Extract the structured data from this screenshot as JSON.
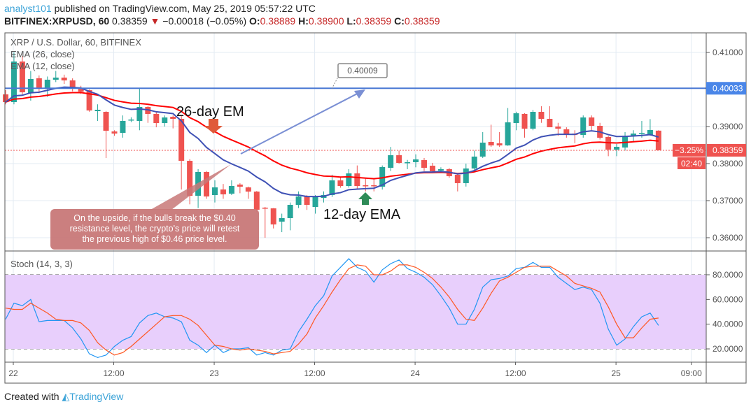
{
  "header": {
    "user": "analyst101",
    "published": " published on TradingView.com, May 25, 2019 05:57:22 UTC",
    "symbol": "BITFINEX:XRPUSD, 60",
    "last": "0.38359",
    "change": "−0.00018 (−0.05%)",
    "o_label": "O:",
    "o": "0.38889",
    "h_label": "H:",
    "h": "0.38900",
    "l_label": "L:",
    "l": "0.38359",
    "c_label": "C:",
    "c": "0.38359"
  },
  "chart_data": [
    {
      "type": "candlestick",
      "title": "XRP / U.S. Dollar, 60, BITFINEX",
      "legend": [
        "EMA (26, close)",
        "EMA (12, close)"
      ],
      "ylim": [
        0.3555,
        0.4155
      ],
      "y_ticks": [
        "0.41000",
        "0.39000",
        "0.38000",
        "0.37000",
        "0.36000"
      ],
      "y_tick_values": [
        0.41,
        0.39,
        0.38,
        0.37,
        0.36
      ],
      "x_ticks": [
        "22",
        "12:00",
        "23",
        "12:00",
        "24",
        "12:00",
        "25",
        "09:00"
      ],
      "x_tick_hours": [
        1,
        13,
        25,
        37,
        49,
        61,
        73,
        82
      ],
      "grid": true,
      "colors": {
        "up": "#26a69a",
        "down": "#ef5350",
        "ema26": "#ff0000",
        "ema12": "#3f51b5",
        "hline": "#4a78d4"
      },
      "candles_ohlc": [
        [
          0.39868,
          0.3998,
          0.396,
          0.3966
        ],
        [
          0.3966,
          0.41,
          0.396,
          0.40755
        ],
        [
          0.40755,
          0.409,
          0.3985,
          0.39925
        ],
        [
          0.39906,
          0.405,
          0.397,
          0.40283
        ],
        [
          0.40302,
          0.4038,
          0.399,
          0.40019
        ],
        [
          0.40038,
          0.4035,
          0.398,
          0.40264
        ],
        [
          0.40264,
          0.405,
          0.402,
          0.40321
        ],
        [
          0.40321,
          0.404,
          0.4015,
          0.40245
        ],
        [
          0.40245,
          0.403,
          0.3995,
          0.40019
        ],
        [
          0.40019,
          0.401,
          0.3988,
          0.39943
        ],
        [
          0.39981,
          0.4,
          0.394,
          0.39434
        ],
        [
          0.39415,
          0.396,
          0.3915,
          0.39453
        ],
        [
          0.39396,
          0.3942,
          0.3815,
          0.38887
        ],
        [
          0.38868,
          0.389,
          0.3875,
          0.38811
        ],
        [
          0.3883,
          0.393,
          0.387,
          0.39151
        ],
        [
          0.3917,
          0.3925,
          0.3912,
          0.39189
        ],
        [
          0.39151,
          0.4002,
          0.389,
          0.39528
        ],
        [
          0.39528,
          0.3956,
          0.391,
          0.3934
        ],
        [
          0.3934,
          0.394,
          0.3898,
          0.39094
        ],
        [
          0.39094,
          0.393,
          0.39,
          0.39245
        ],
        [
          0.39264,
          0.393,
          0.3895,
          0.39208
        ],
        [
          0.39208,
          0.393,
          0.373,
          0.38075
        ],
        [
          0.38075,
          0.3812,
          0.369,
          0.37132
        ],
        [
          0.37132,
          0.3785,
          0.368,
          0.37774
        ],
        [
          0.37774,
          0.378,
          0.3705,
          0.37113
        ],
        [
          0.37151,
          0.3755,
          0.3695,
          0.37358
        ],
        [
          0.37302,
          0.3745,
          0.3705,
          0.3717
        ],
        [
          0.37189,
          0.3755,
          0.3715,
          0.37396
        ],
        [
          0.37434,
          0.3747,
          0.372,
          0.37377
        ],
        [
          0.37358,
          0.3738,
          0.3705,
          0.37245
        ],
        [
          0.37245,
          0.3726,
          0.367,
          0.36755
        ],
        [
          0.36811,
          0.3683,
          0.36,
          0.36792
        ],
        [
          0.36792,
          0.368,
          0.3625,
          0.36358
        ],
        [
          0.36434,
          0.3665,
          0.3615,
          0.36528
        ],
        [
          0.36528,
          0.3695,
          0.362,
          0.36887
        ],
        [
          0.36887,
          0.3725,
          0.368,
          0.37113
        ],
        [
          0.37113,
          0.3715,
          0.3675,
          0.36887
        ],
        [
          0.3683,
          0.3715,
          0.3665,
          0.37113
        ],
        [
          0.37075,
          0.3725,
          0.3695,
          0.37151
        ],
        [
          0.37151,
          0.377,
          0.371,
          0.37547
        ],
        [
          0.37547,
          0.3765,
          0.3735,
          0.37396
        ],
        [
          0.37396,
          0.3785,
          0.3735,
          0.37736
        ],
        [
          0.37736,
          0.3795,
          0.373,
          0.37396
        ],
        [
          0.37415,
          0.376,
          0.3725,
          0.37396
        ],
        [
          0.37415,
          0.376,
          0.3725,
          0.37396
        ],
        [
          0.37377,
          0.3795,
          0.373,
          0.37906
        ],
        [
          0.37887,
          0.3845,
          0.378,
          0.38226
        ],
        [
          0.38226,
          0.3835,
          0.38,
          0.38019
        ],
        [
          0.38019,
          0.381,
          0.3785,
          0.38038
        ],
        [
          0.38038,
          0.3825,
          0.379,
          0.38113
        ],
        [
          0.38094,
          0.3815,
          0.378,
          0.37887
        ],
        [
          0.37943,
          0.3802,
          0.3775,
          0.37792
        ],
        [
          0.37811,
          0.379,
          0.3778,
          0.37849
        ],
        [
          0.37849,
          0.3788,
          0.3762,
          0.3766
        ],
        [
          0.37698,
          0.3772,
          0.3725,
          0.37472
        ],
        [
          0.37472,
          0.38,
          0.3738,
          0.37868
        ],
        [
          0.37868,
          0.3835,
          0.378,
          0.38189
        ],
        [
          0.38189,
          0.3885,
          0.3815,
          0.38566
        ],
        [
          0.38585,
          0.3905,
          0.3845,
          0.38491
        ],
        [
          0.38547,
          0.3885,
          0.3845,
          0.38491
        ],
        [
          0.38491,
          0.395,
          0.3848,
          0.39113
        ],
        [
          0.39094,
          0.394,
          0.389,
          0.39358
        ],
        [
          0.3934,
          0.3936,
          0.387,
          0.38943
        ],
        [
          0.38943,
          0.3945,
          0.389,
          0.39396
        ],
        [
          0.39396,
          0.3955,
          0.391,
          0.39208
        ],
        [
          0.39208,
          0.3955,
          0.39,
          0.38981
        ],
        [
          0.39,
          0.391,
          0.3875,
          0.38943
        ],
        [
          0.38925,
          0.3898,
          0.387,
          0.38792
        ],
        [
          0.38811,
          0.389,
          0.3855,
          0.38774
        ],
        [
          0.38774,
          0.393,
          0.387,
          0.39245
        ],
        [
          0.39245,
          0.393,
          0.389,
          0.39019
        ],
        [
          0.39019,
          0.391,
          0.3865,
          0.38698
        ],
        [
          0.38717,
          0.3875,
          0.382,
          0.38377
        ],
        [
          0.38377,
          0.3853,
          0.382,
          0.38453
        ],
        [
          0.38434,
          0.3885,
          0.3835,
          0.38755
        ],
        [
          0.38755,
          0.389,
          0.386,
          0.38811
        ],
        [
          0.38811,
          0.3915,
          0.387,
          0.3883
        ],
        [
          0.38774,
          0.392,
          0.3875,
          0.38906
        ],
        [
          0.38889,
          0.389,
          0.38359,
          0.38359
        ]
      ],
      "horizontal_line": {
        "value": 0.40033,
        "label": "0.40033"
      },
      "last_price": {
        "value": 0.38359,
        "label": "0.38359",
        "pct": "−3.25%",
        "countdown": "02:40"
      },
      "trend_line": {
        "label": "0.40009"
      },
      "annotations": {
        "ema26_text": "26-day EM",
        "ema12_text": "12-day EMA",
        "callout": [
          "On the upside, if the bulls  break the $0.40",
          "resistance level, the crypto's price will retest",
          "the previous high of $0.46 price level."
        ]
      }
    },
    {
      "type": "line",
      "title": "Stoch (14, 3, 3)",
      "ylim": [
        10,
        95
      ],
      "y_ticks": [
        "80.0000",
        "60.0000",
        "40.0000",
        "20.0000"
      ],
      "y_tick_values": [
        80,
        60,
        40,
        20
      ],
      "bands": [
        20,
        80
      ],
      "band_fill": "#e8cffc",
      "series": [
        {
          "color": "#2196f3",
          "values": [
            44,
            57,
            55,
            60,
            42,
            43,
            43,
            43,
            37,
            28,
            16,
            13,
            15,
            22,
            27,
            30,
            41,
            47,
            49,
            46,
            45,
            42,
            27,
            23,
            17,
            23,
            17,
            20,
            20,
            21,
            15,
            17,
            15,
            19,
            20,
            34,
            44,
            55,
            63,
            79,
            86,
            93,
            86,
            83,
            74,
            84,
            89,
            92,
            85,
            82,
            78,
            72,
            63,
            53,
            40,
            40,
            52,
            70,
            76,
            77,
            79,
            85,
            86,
            90,
            86,
            86,
            78,
            73,
            68,
            70,
            68,
            57,
            36,
            23,
            28,
            38,
            46,
            49,
            39
          ]
        },
        {
          "color": "#ff5722",
          "values": [
            53,
            52,
            52,
            57,
            53,
            49,
            44,
            43,
            43,
            41,
            35,
            25,
            19,
            15,
            17,
            22,
            28,
            34,
            40,
            46,
            47,
            47,
            44,
            39,
            31,
            23,
            22,
            20,
            19,
            20,
            19,
            18,
            16,
            17,
            18,
            24,
            32,
            45,
            55,
            66,
            76,
            85,
            88,
            87,
            80,
            80,
            83,
            88,
            88,
            86,
            82,
            77,
            70,
            62,
            52,
            44,
            43,
            53,
            65,
            75,
            78,
            82,
            86,
            87,
            87,
            87,
            83,
            79,
            73,
            71,
            69,
            66,
            54,
            40,
            29,
            29,
            37,
            44,
            45
          ]
        }
      ]
    }
  ],
  "footer": {
    "created": "Created with",
    "brand": "TradingView"
  }
}
